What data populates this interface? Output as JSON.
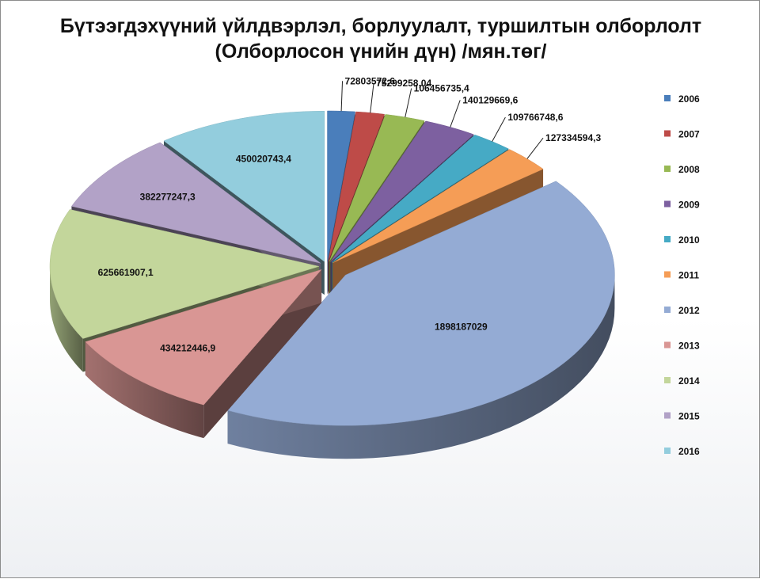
{
  "chart_data": {
    "type": "pie",
    "title": "Бүтээгдэхүүний үйлдвэрлэл, борлуулалт, туршилтын олборлолт",
    "subtitle": "(Олборлосон үнийн дүн) /мян.төг/",
    "categories": [
      "2006",
      "2007",
      "2008",
      "2009",
      "2010",
      "2011",
      "2012",
      "2013",
      "2014",
      "2015",
      "2016"
    ],
    "values": [
      72803572.6,
      75299258.04,
      106456735.4,
      140129669.6,
      109766748.6,
      127334594.3,
      1898187029,
      434212446.9,
      625661907.1,
      382277247.3,
      450020743.4
    ],
    "data_labels": [
      "72803572,6",
      "75299258,04",
      "106456735,4",
      "140129669,6",
      "109766748,6",
      "127334594,3",
      "1898187029",
      "434212446,9",
      "625661907,1",
      "382277247,3",
      "450020743,4"
    ],
    "colors": [
      "#4a7ebb",
      "#be4b48",
      "#98b954",
      "#7d60a0",
      "#46aac5",
      "#f59d56",
      "#94abd4",
      "#d99694",
      "#c3d69b",
      "#b2a2c7",
      "#93cddd"
    ],
    "legend": "right",
    "exploded": true,
    "three_d": true
  }
}
